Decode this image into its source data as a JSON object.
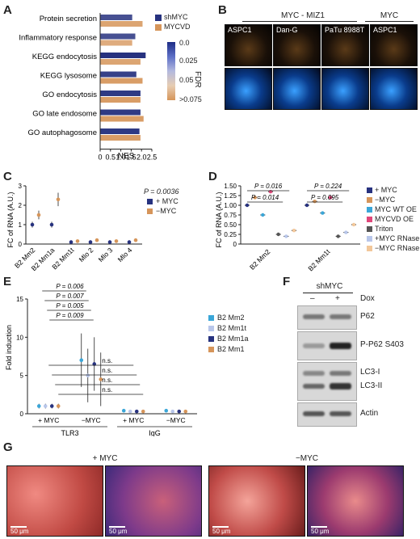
{
  "panels": {
    "A": "A",
    "B": "B",
    "C": "C",
    "D": "D",
    "E": "E",
    "F": "F",
    "G": "G"
  },
  "panelA": {
    "chart_data": {
      "type": "bar",
      "orientation": "horizontal",
      "categories": [
        "Protein secretion",
        "Inflammatory response",
        "KEGG endocytosis",
        "KEGG lysosome",
        "GO endocytosis",
        "GO late endosome",
        "GO autophagosome"
      ],
      "series": [
        {
          "name": "shMYC",
          "values": [
            1.55,
            1.7,
            2.2,
            1.75,
            1.95,
            1.95,
            1.9
          ],
          "fdr": [
            0.02,
            0.02,
            0.0,
            0.01,
            0.005,
            0.005,
            0.005
          ]
        },
        {
          "name": "MYCVD",
          "values": [
            2.05,
            1.55,
            1.95,
            2.05,
            1.95,
            2.1,
            1.95
          ],
          "fdr": [
            0.07,
            0.08,
            0.07,
            0.06,
            0.06,
            0.06,
            0.06
          ]
        }
      ],
      "xlabel": "NES",
      "xticks": [
        "0",
        "0.5",
        "1.0",
        "1.5",
        "2.0",
        "2.5"
      ],
      "xlim": [
        0,
        2.5
      ],
      "colorbar": {
        "label": "FDR",
        "ticks": [
          "0.0",
          "0.025",
          "0.05",
          ">0.075"
        ]
      },
      "legend": [
        "shMYC",
        "MYCVD"
      ],
      "colors": {
        "shMYC": "#27327f",
        "MYCVD": "#d6955a"
      }
    }
  },
  "panelB": {
    "title_left": "MYC - MIZ1",
    "title_right": "MYC",
    "columns": [
      "ASPC1",
      "Dan-G",
      "PaTu 8988T",
      "ASPC1"
    ]
  },
  "panelC": {
    "chart_data": {
      "type": "scatter",
      "categories": [
        "B2 Mm2",
        "B2 Mm1a",
        "B2 Mm1t",
        "Mlo 2",
        "Mlo 3",
        "Mlo 4"
      ],
      "series": [
        {
          "name": "+ MYC",
          "values": [
            1.0,
            1.0,
            0.1,
            0.1,
            0.1,
            0.1
          ]
        },
        {
          "name": "−MYC",
          "values": [
            1.5,
            2.3,
            0.15,
            0.2,
            0.15,
            0.2
          ]
        }
      ],
      "ylabel": "FC of RNA (A.U.)",
      "yticks": [
        "0",
        "1",
        "2",
        "3"
      ],
      "ylim": [
        0,
        3
      ],
      "pvalue": "P = 0.0036",
      "colors": {
        "+ MYC": "#27327f",
        "−MYC": "#d6955a"
      }
    }
  },
  "panelD": {
    "chart_data": {
      "type": "scatter",
      "categories": [
        "B2 Mm2",
        "B2 Mm1t"
      ],
      "series": [
        {
          "name": "+ MYC",
          "values": [
            1.0,
            1.0
          ]
        },
        {
          "name": "−MYC",
          "values": [
            1.2,
            1.1
          ]
        },
        {
          "name": "MYC WT OE",
          "values": [
            0.75,
            0.8
          ]
        },
        {
          "name": "MYCVD OE",
          "values": [
            1.35,
            1.2
          ]
        },
        {
          "name": "Triton",
          "values": [
            0.25,
            0.2
          ]
        },
        {
          "name": "+MYC RNase III",
          "values": [
            0.2,
            0.3
          ]
        },
        {
          "name": "−MYC RNase III",
          "values": [
            0.35,
            0.5
          ]
        }
      ],
      "ylabel": "FC of RNA (A.U.)",
      "yticks": [
        "0",
        "0.25",
        "0.50",
        "0.75",
        "1.00",
        "1.25",
        "1.50"
      ],
      "ylim": [
        0,
        1.5
      ],
      "pvalues": [
        "P = 0.016",
        "P = 0.014",
        "P = 0.224",
        "P = 0.095"
      ],
      "colors": {
        "+ MYC": "#27327f",
        "−MYC": "#d6955a",
        "MYC WT OE": "#3aa6d8",
        "MYCVD OE": "#e0477a",
        "Triton": "#555555",
        "+MYC RNase III": "#b8c6ea",
        "−MYC RNase III": "#f2c79a"
      }
    }
  },
  "panelE": {
    "chart_data": {
      "type": "scatter",
      "groups": [
        "+ MYC",
        "−MYC",
        "+ MYC",
        "−MYC"
      ],
      "supergroups": [
        "TLR3",
        "IgG"
      ],
      "series": [
        {
          "name": "B2 Mm2",
          "values": [
            1.0,
            7.0,
            0.4,
            0.4
          ]
        },
        {
          "name": "B2 Mm1t",
          "values": [
            1.0,
            5.0,
            0.3,
            0.3
          ]
        },
        {
          "name": "B2 Mm1a",
          "values": [
            1.0,
            6.5,
            0.3,
            0.3
          ]
        },
        {
          "name": "B2 Mm1",
          "values": [
            1.0,
            4.5,
            0.3,
            0.3
          ]
        }
      ],
      "ylabel": "Fold induction",
      "yticks": [
        "0",
        "5",
        "10",
        "15"
      ],
      "ylim": [
        0,
        15
      ],
      "pvalues": [
        "P = 0.006",
        "P = 0.007",
        "P = 0.005",
        "P = 0.009"
      ],
      "ns": [
        "n.s.",
        "n.s.",
        "n.s.",
        "n.s."
      ],
      "colors": {
        "B2 Mm2": "#3aa6d8",
        "B2 Mm1t": "#b8c6ea",
        "B2 Mm1a": "#27327f",
        "B2 Mm1": "#d6955a"
      }
    }
  },
  "panelF": {
    "title": "shMYC",
    "dox_label": "Dox",
    "minus": "–",
    "plus": "+",
    "bands": [
      "P62",
      "P-P62 S403",
      "LC3-I",
      "LC3-II",
      "Actin"
    ]
  },
  "panelG": {
    "label_left": "+ MYC",
    "label_right": "−MYC",
    "scale": "50 μm"
  }
}
